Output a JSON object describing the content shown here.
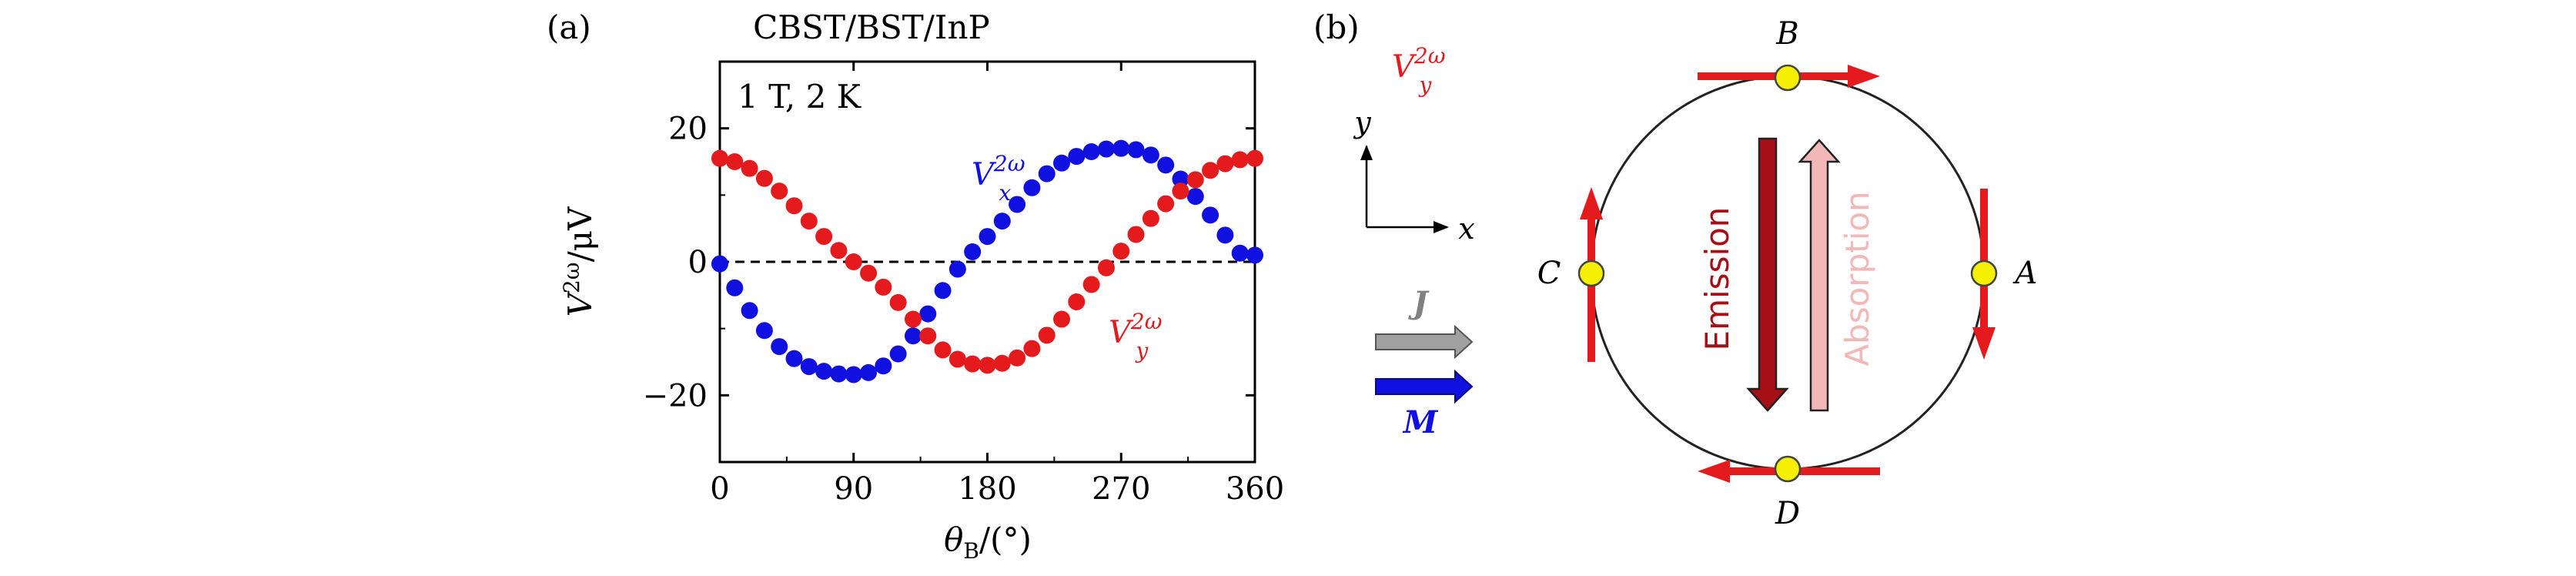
{
  "panel_a": {
    "label": "(a)",
    "title": "CBST/BST/InP",
    "annotation": "1 T, 2 K",
    "ylabel_main": "V",
    "ylabel_sup": "2ω",
    "ylabel_unit": "/μV",
    "xlabel_main": "θ",
    "xlabel_sub": "B",
    "xlabel_unit": "/(°)",
    "series_x_label_main": "V",
    "series_x_label_sup": "2ω",
    "series_x_label_sub": "x",
    "series_y_label_main": "V",
    "series_y_label_sup": "2ω",
    "series_y_label_sub": "y"
  },
  "chart_data": {
    "type": "scatter",
    "title": "CBST/BST/InP",
    "xlabel": "θB/(°)",
    "ylabel": "V2ω/μV",
    "xlim": [
      0,
      360
    ],
    "ylim": [
      -30,
      30
    ],
    "xticks": [
      0,
      90,
      180,
      270,
      360
    ],
    "yticks": [
      -20,
      0,
      20
    ],
    "xtick_labels": [
      "0",
      "90",
      "180",
      "270",
      "360"
    ],
    "ytick_labels": [
      "−20",
      "0",
      "20"
    ],
    "zero_line": "dashed",
    "x": [
      0,
      10,
      20,
      30,
      40,
      50,
      60,
      70,
      80,
      90,
      100,
      110,
      120,
      130,
      140,
      150,
      160,
      170,
      180,
      190,
      200,
      210,
      220,
      230,
      240,
      250,
      260,
      270,
      280,
      290,
      300,
      310,
      320,
      330,
      340,
      350,
      360
    ],
    "series": [
      {
        "name": "Vx2ω",
        "color": "#1010e0",
        "values": [
          -0.3,
          -3.9,
          -7.3,
          -10.3,
          -12.7,
          -14.5,
          -15.7,
          -16.4,
          -16.8,
          -16.9,
          -16.6,
          -15.6,
          -13.8,
          -11.1,
          -7.8,
          -4.3,
          -1.1,
          1.5,
          3.8,
          6.1,
          8.6,
          11.1,
          13.2,
          14.8,
          15.8,
          16.5,
          16.9,
          17.0,
          16.8,
          16.0,
          14.5,
          12.4,
          9.8,
          7.0,
          4.0,
          1.3,
          1.0
        ]
      },
      {
        "name": "Vy2ω",
        "color": "#e41a1c",
        "values": [
          15.5,
          15.0,
          14.0,
          12.5,
          10.6,
          8.4,
          6.1,
          3.8,
          1.7,
          0.0,
          -1.7,
          -3.8,
          -6.1,
          -8.6,
          -11.1,
          -13.2,
          -14.6,
          -15.3,
          -15.5,
          -15.2,
          -14.4,
          -13.0,
          -11.0,
          -8.6,
          -6.0,
          -3.4,
          -0.9,
          1.6,
          4.1,
          6.5,
          8.7,
          10.6,
          12.3,
          13.7,
          14.7,
          15.3,
          15.5
        ]
      }
    ]
  },
  "panel_b": {
    "label": "(b)",
    "legend_label_main": "V",
    "legend_label_sup": "2ω",
    "legend_label_sub": "y",
    "axis_x": "x",
    "axis_y": "y",
    "J_label": "J",
    "M_label": "M",
    "point_A": "A",
    "point_B": "B",
    "point_C": "C",
    "point_D": "D",
    "emission": "Emission",
    "absorption": "Absorption",
    "colors": {
      "red": "#e41a1c",
      "blue": "#1010e0",
      "dark_red": "#a50f15",
      "light_red": "#f2b8b8",
      "gray": "#a0a0a0",
      "yellow": "#f5f000"
    }
  }
}
